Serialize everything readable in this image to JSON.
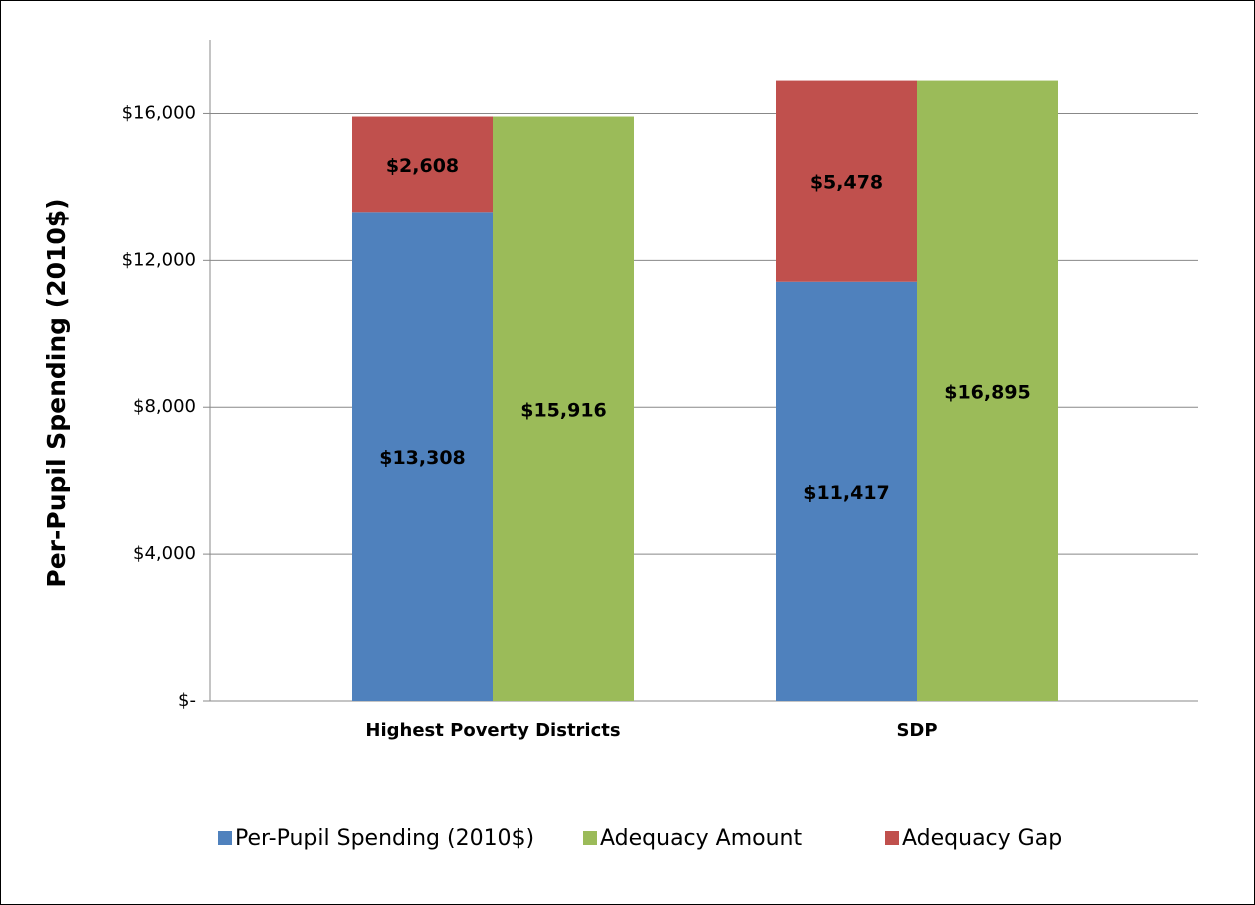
{
  "chart_data": {
    "type": "bar",
    "ylabel": "Per-Pupil Spending (2010$)",
    "categories": [
      "Highest Poverty Districts",
      "SDP"
    ],
    "series": [
      {
        "name": "Per-Pupil Spending (2010$)",
        "color": "#4f81bd",
        "stack": 0,
        "values": [
          13308,
          11417
        ],
        "value_labels": [
          "$13,308",
          "$11,417"
        ]
      },
      {
        "name": "Adequacy Amount",
        "color": "#9bbb59",
        "stack": 1,
        "values": [
          15916,
          16895
        ],
        "value_labels": [
          "$15,916",
          "$16,895"
        ]
      },
      {
        "name": "Adequacy Gap",
        "color": "#c0504d",
        "stack": 0,
        "values": [
          2608,
          5478
        ],
        "value_labels": [
          "$2,608",
          "$5,478"
        ]
      }
    ],
    "ylim": [
      0,
      18000
    ],
    "yticks": [
      {
        "value": 0,
        "label": "$-"
      },
      {
        "value": 4000,
        "label": "$4,000"
      },
      {
        "value": 8000,
        "label": "$8,000"
      },
      {
        "value": 12000,
        "label": "$12,000"
      },
      {
        "value": 16000,
        "label": "$16,000"
      }
    ],
    "grid": true,
    "legend": "bottom"
  }
}
